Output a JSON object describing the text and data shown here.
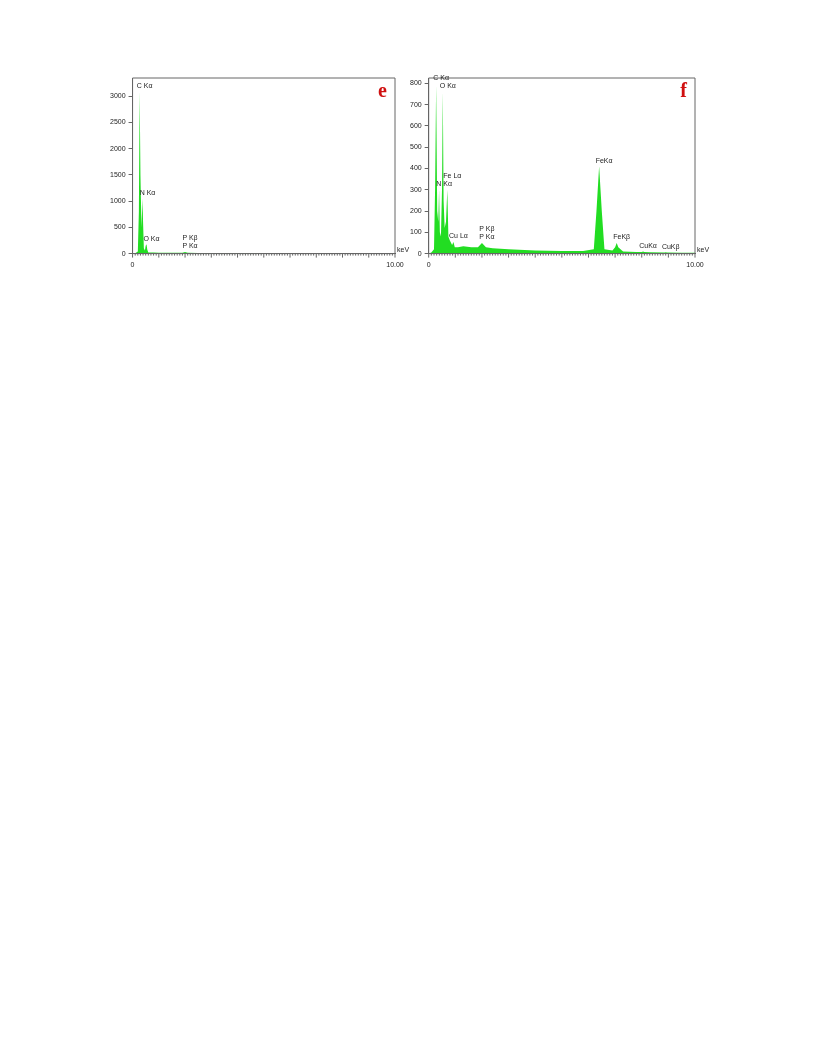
{
  "chart_data": [
    {
      "type": "area",
      "title": "e",
      "xlabel": "keV",
      "x": [
        0,
        0.1,
        0.2,
        0.24,
        0.27,
        0.3,
        0.34,
        0.38,
        0.4,
        0.43,
        0.47,
        0.5,
        0.53,
        0.56,
        0.6,
        0.8,
        1.0,
        1.5,
        1.9,
        2.0,
        2.1,
        2.5,
        3.0,
        4,
        5,
        6,
        7,
        8,
        9,
        10
      ],
      "series": [
        {
          "color": "#22dd22",
          "values": [
            0,
            5,
            40,
            800,
            3100,
            1500,
            500,
            1050,
            600,
            100,
            60,
            150,
            180,
            80,
            20,
            20,
            15,
            15,
            15,
            30,
            15,
            10,
            8,
            5,
            4,
            3,
            3,
            2,
            2,
            2
          ]
        }
      ],
      "xlim": [
        0,
        10
      ],
      "xticks": [
        0,
        {
          "value": 10,
          "label": "10.00"
        }
      ],
      "ylim": [
        0,
        3350
      ],
      "yticks": [
        0,
        500,
        1000,
        1500,
        2000,
        2500,
        3000
      ],
      "grid": false,
      "legend": false,
      "annotations": [
        {
          "text": "C Kα",
          "x": 0.27,
          "y": 3100
        },
        {
          "text": "N Kα",
          "x": 0.38,
          "y": 1050
        },
        {
          "text": "O Kα",
          "x": 0.53,
          "y": 180
        },
        {
          "text": "P Kβ",
          "x": 2.0,
          "y": 30
        },
        {
          "text": "P Kα",
          "x": 2.0,
          "y": 30
        }
      ]
    },
    {
      "type": "area",
      "title": "f",
      "xlabel": "keV",
      "x": [
        0,
        0.1,
        0.2,
        0.24,
        0.28,
        0.32,
        0.36,
        0.39,
        0.42,
        0.46,
        0.5,
        0.53,
        0.56,
        0.6,
        0.65,
        0.7,
        0.74,
        0.8,
        0.88,
        0.93,
        0.98,
        1.1,
        1.3,
        1.6,
        1.85,
        2.0,
        2.15,
        2.4,
        3,
        4,
        5,
        5.8,
        6.2,
        6.3,
        6.4,
        6.5,
        6.6,
        6.9,
        7.0,
        7.06,
        7.12,
        7.3,
        7.8,
        8.0,
        8.05,
        8.1,
        8.3,
        8.85,
        8.9,
        8.95,
        9.5,
        10
      ],
      "series": [
        {
          "color": "#22dd22",
          "values": [
            0,
            5,
            20,
            300,
            790,
            200,
            150,
            300,
            100,
            80,
            300,
            760,
            250,
            120,
            150,
            300,
            80,
            60,
            40,
            55,
            30,
            30,
            35,
            30,
            30,
            50,
            30,
            25,
            20,
            15,
            12,
            12,
            20,
            200,
            410,
            200,
            20,
            15,
            30,
            50,
            30,
            10,
            8,
            8,
            10,
            8,
            6,
            5,
            6,
            5,
            4,
            4
          ]
        }
      ],
      "xlim": [
        0,
        10
      ],
      "xticks": [
        0,
        {
          "value": 10,
          "label": "10.00"
        }
      ],
      "ylim": [
        0,
        825
      ],
      "yticks": [
        0,
        100,
        200,
        300,
        400,
        500,
        600,
        700,
        800
      ],
      "grid": false,
      "legend": false,
      "annotations": [
        {
          "text": "C Kα",
          "x": 0.28,
          "y": 790
        },
        {
          "text": "O Kα",
          "x": 0.53,
          "y": 760
        },
        {
          "text": "Fe Lα",
          "x": 0.7,
          "y": 300
        },
        {
          "text": "N Kα",
          "x": 0.39,
          "y": 300
        },
        {
          "text": "Cu Lα",
          "x": 0.93,
          "y": 55
        },
        {
          "text": "P Kβ",
          "x": 2.0,
          "y": 50
        },
        {
          "text": "P Kα",
          "x": 2.0,
          "y": 50
        },
        {
          "text": "FeKα",
          "x": 6.4,
          "y": 410
        },
        {
          "text": "FeKβ",
          "x": 7.06,
          "y": 50
        },
        {
          "text": "CuKα",
          "x": 8.05,
          "y": 10
        },
        {
          "text": "CuKβ",
          "x": 8.9,
          "y": 6
        }
      ]
    }
  ]
}
